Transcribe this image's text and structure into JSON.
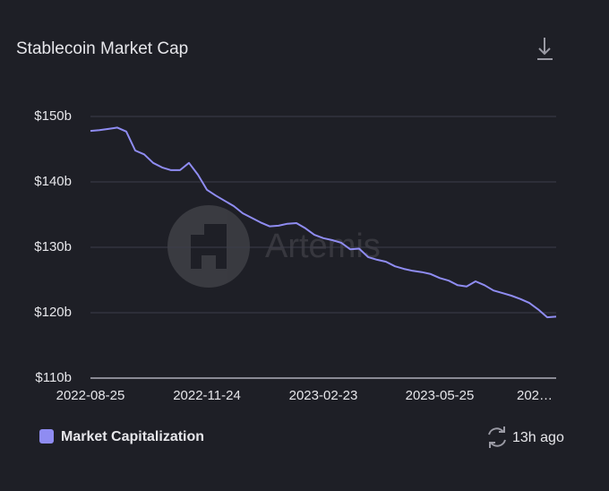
{
  "chart_data": {
    "type": "line",
    "title": "Stablecoin Market Cap",
    "watermark": "Artemis",
    "x": [
      "2022-08-25",
      "2022-09-01",
      "2022-09-08",
      "2022-09-15",
      "2022-09-22",
      "2022-09-29",
      "2022-10-06",
      "2022-10-13",
      "2022-10-20",
      "2022-10-27",
      "2022-11-03",
      "2022-11-10",
      "2022-11-17",
      "2022-11-24",
      "2022-12-01",
      "2022-12-08",
      "2022-12-15",
      "2022-12-22",
      "2022-12-29",
      "2023-01-05",
      "2023-01-12",
      "2023-01-19",
      "2023-01-26",
      "2023-02-02",
      "2023-02-09",
      "2023-02-16",
      "2023-02-23",
      "2023-03-02",
      "2023-03-09",
      "2023-03-16",
      "2023-03-23",
      "2023-03-30",
      "2023-04-06",
      "2023-04-13",
      "2023-04-20",
      "2023-04-27",
      "2023-05-04",
      "2023-05-11",
      "2023-05-18",
      "2023-05-25",
      "2023-06-01",
      "2023-06-08",
      "2023-06-15",
      "2023-06-22",
      "2023-06-29",
      "2023-07-06",
      "2023-07-13",
      "2023-07-20",
      "2023-07-27",
      "2023-08-03",
      "2023-08-10",
      "2023-08-17",
      "2023-08-24"
    ],
    "series": [
      {
        "name": "Market Capitalization",
        "color": "#8f8cf2",
        "values": [
          147.8,
          147.9,
          148.1,
          148.3,
          147.7,
          144.8,
          144.2,
          142.9,
          142.2,
          141.8,
          141.8,
          142.9,
          141.1,
          138.8,
          137.9,
          137.1,
          136.3,
          135.2,
          134.5,
          133.8,
          133.2,
          133.3,
          133.6,
          133.7,
          132.9,
          131.9,
          131.4,
          131.1,
          130.7,
          129.7,
          129.8,
          128.5,
          128.1,
          127.8,
          127.1,
          126.7,
          126.4,
          126.2,
          125.9,
          125.3,
          124.9,
          124.2,
          124.0,
          124.8,
          124.2,
          123.4,
          123.0,
          122.6,
          122.1,
          121.5,
          120.5,
          119.3,
          119.4
        ]
      }
    ],
    "ylim": [
      110,
      150
    ],
    "yticks": [
      {
        "value": 110,
        "label": "$110b"
      },
      {
        "value": 120,
        "label": "$120b"
      },
      {
        "value": 130,
        "label": "$130b"
      },
      {
        "value": 140,
        "label": "$140b"
      },
      {
        "value": 150,
        "label": "$150b"
      }
    ],
    "xlim": [
      "2022-08-25",
      "2023-08-24"
    ],
    "xticks": [
      "2022-08-25",
      "2022-11-24",
      "2023-02-23",
      "2023-05-25",
      {
        "value": "2023-08-24",
        "label": "202…"
      }
    ],
    "grid": true,
    "updated": "13h ago"
  }
}
